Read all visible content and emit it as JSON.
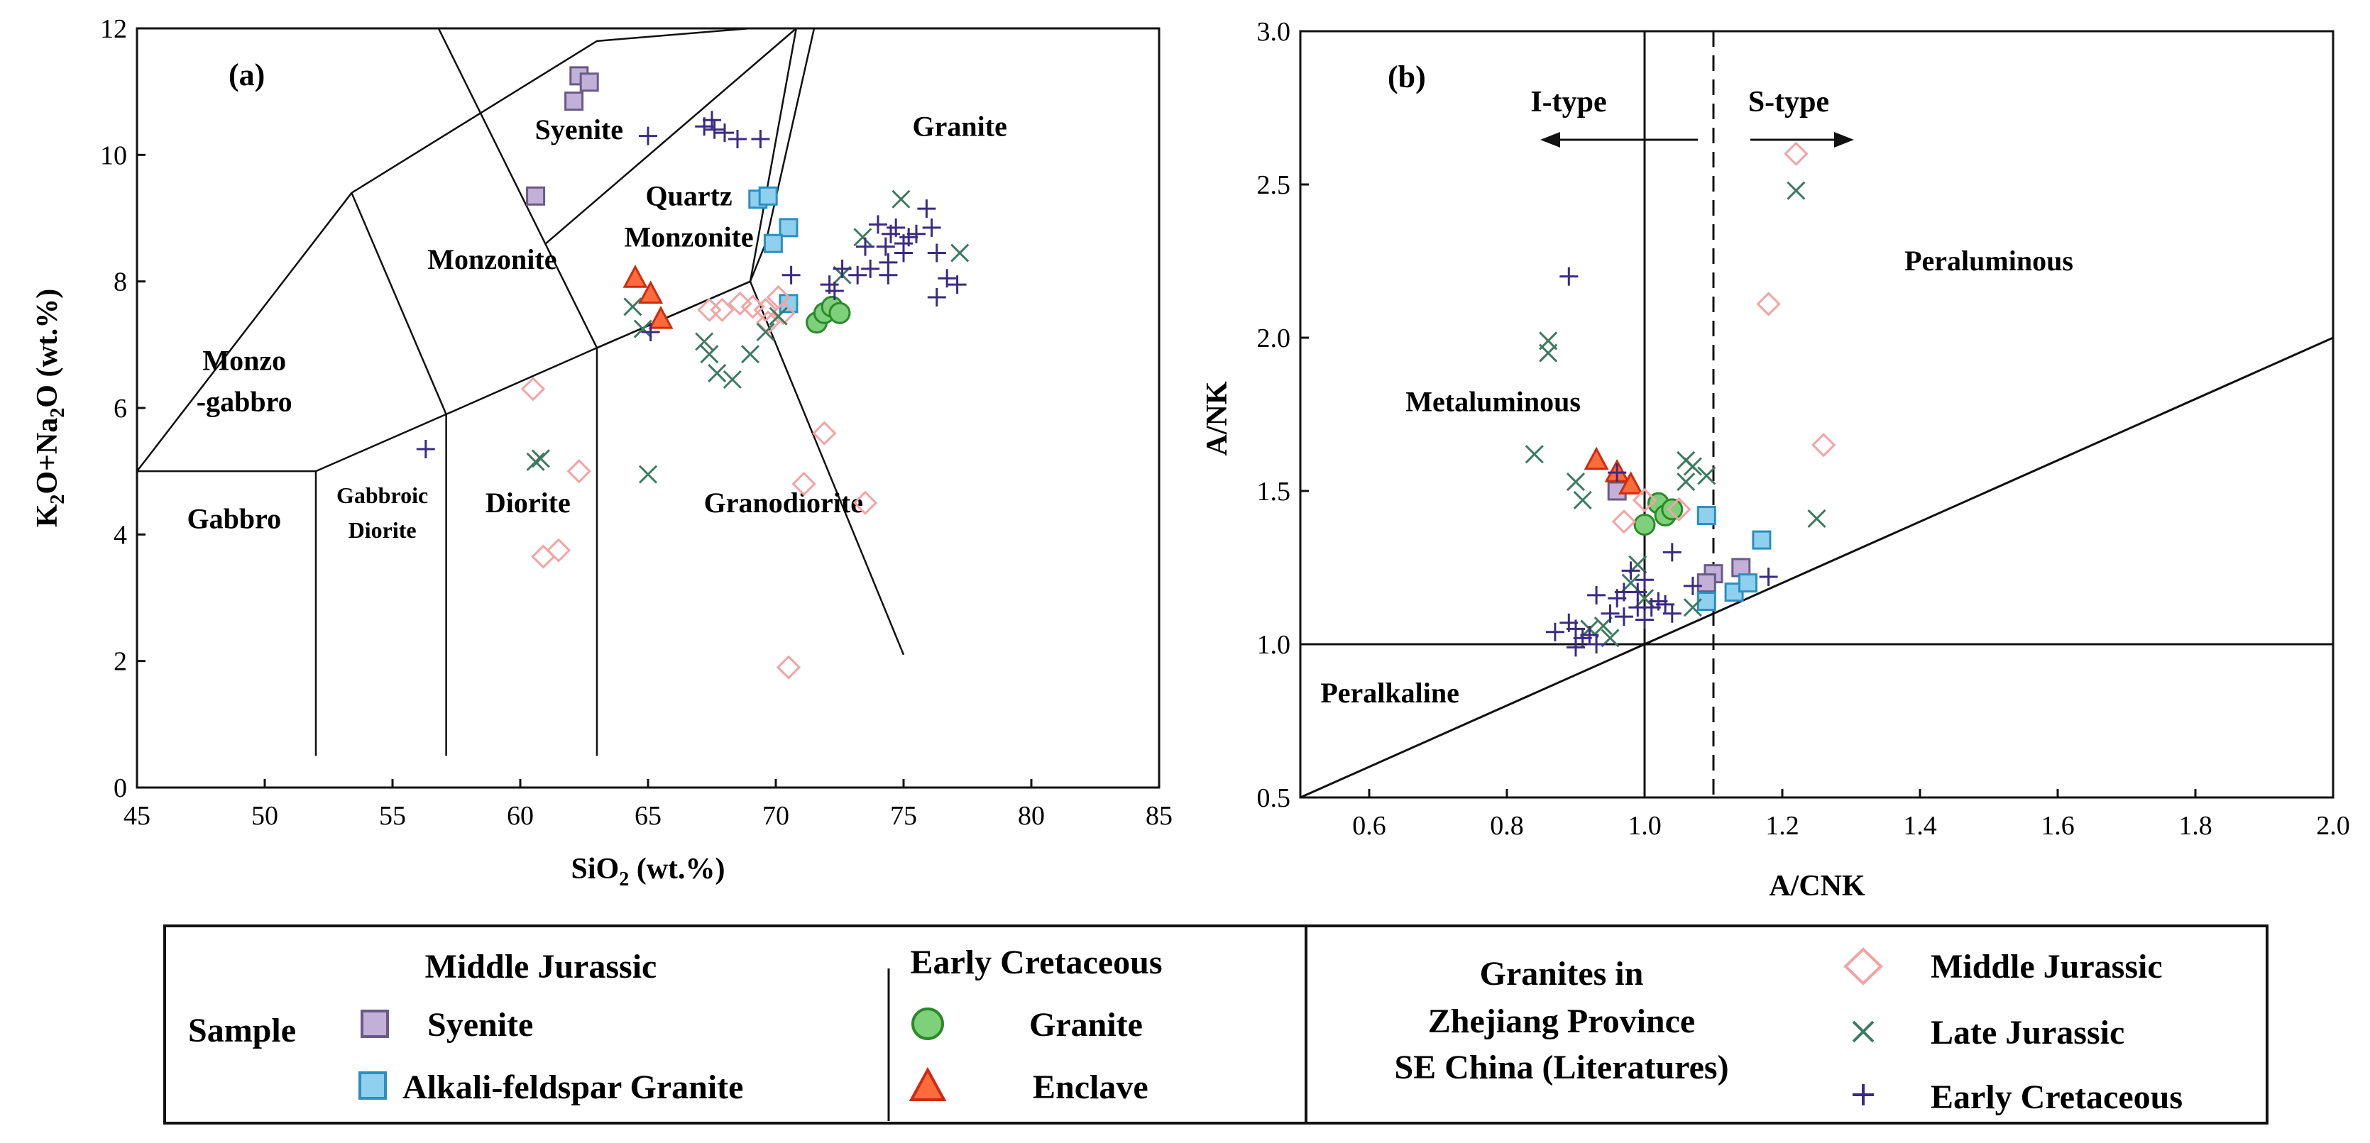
{
  "chart_data": [
    {
      "type": "scatter",
      "panel_label": "(a)",
      "xlabel_main": "SiO",
      "xlabel_sub": "2",
      "xlabel_tail": " (wt.%)",
      "ylabel_parts": [
        {
          "t": "K",
          "sub": false
        },
        {
          "t": "2",
          "sub": true
        },
        {
          "t": "O+Na",
          "sub": false
        },
        {
          "t": "2",
          "sub": true
        },
        {
          "t": "O (wt.%)",
          "sub": false
        }
      ],
      "xlim": [
        45,
        85
      ],
      "ylim": [
        0,
        12
      ],
      "xticks": [
        45,
        50,
        55,
        60,
        65,
        70,
        75,
        80,
        85
      ],
      "yticks": [
        0,
        2,
        4,
        6,
        8,
        10,
        12
      ],
      "field_boundaries": [
        [
          [
            45,
            5
          ],
          [
            52,
            5
          ],
          [
            57.1,
            5.9
          ],
          [
            63,
            6.95
          ],
          [
            69,
            8
          ]
        ],
        [
          [
            45,
            5
          ],
          [
            53.4,
            9.4
          ],
          [
            63,
            11.8
          ],
          [
            69,
            14
          ]
        ],
        [
          [
            52,
            0.5
          ],
          [
            52,
            5
          ]
        ],
        [
          [
            53.4,
            9.4
          ],
          [
            57.1,
            5.9
          ]
        ],
        [
          [
            57.1,
            0.5
          ],
          [
            57.1,
            5.9
          ]
        ],
        [
          [
            63,
            0.5
          ],
          [
            63,
            6.95
          ]
        ],
        [
          [
            56.8,
            12
          ],
          [
            63,
            6.95
          ]
        ],
        [
          [
            61,
            8.6
          ],
          [
            70.8,
            12.3
          ]
        ],
        [
          [
            69,
            8
          ],
          [
            70.8,
            12.3
          ]
        ],
        [
          [
            69,
            8
          ],
          [
            75,
            2.1
          ]
        ],
        [
          [
            71.5,
            12
          ],
          [
            69.6,
            8.6
          ],
          [
            69,
            8
          ]
        ],
        [
          [
            69,
            8
          ],
          [
            63,
            6.95
          ]
        ]
      ],
      "field_labels": [
        {
          "text": "Syenite",
          "x": 62.3,
          "y": 10.25
        },
        {
          "text": "Quartz",
          "x": 66.6,
          "y": 9.2
        },
        {
          "text": "Monzonite",
          "x": 66.6,
          "y": 8.55
        },
        {
          "text": "Monzonite",
          "x": 58.9,
          "y": 8.2
        },
        {
          "text": "Granite",
          "x": 77.2,
          "y": 10.3
        },
        {
          "text": "Monzo",
          "x": 49.2,
          "y": 6.6
        },
        {
          "text": "-gabbro",
          "x": 49.2,
          "y": 5.95
        },
        {
          "text": "Gabbro",
          "x": 48.8,
          "y": 4.1
        },
        {
          "text": "Diorite",
          "x": 60.3,
          "y": 4.35
        },
        {
          "text": "Granodiorite",
          "x": 70.3,
          "y": 4.35
        }
      ],
      "small_labels": [
        {
          "text": "Gabbroic",
          "x": 54.6,
          "y": 4.5
        },
        {
          "text": "Diorite",
          "x": 54.6,
          "y": 3.95
        }
      ],
      "series": [
        {
          "name": "Sample Middle Jurassic Syenite",
          "marker": "square",
          "fill": "#c2b0d8",
          "stroke": "#6a5a88",
          "points": [
            [
              62.3,
              11.25
            ],
            [
              62.7,
              11.15
            ],
            [
              62.1,
              10.85
            ],
            [
              60.6,
              9.35
            ]
          ]
        },
        {
          "name": "Sample Middle Jurassic Alkali-feldspar Granite",
          "marker": "square",
          "fill": "#8fd0ee",
          "stroke": "#2a8fc0",
          "points": [
            [
              69.3,
              9.3
            ],
            [
              69.7,
              9.35
            ],
            [
              70.5,
              8.85
            ],
            [
              69.9,
              8.6
            ],
            [
              70.5,
              7.65
            ]
          ]
        },
        {
          "name": "Sample Early Cretaceous Granite",
          "marker": "circle",
          "fill": "#7ed07a",
          "stroke": "#2a8a2a",
          "points": [
            [
              71.6,
              7.35
            ],
            [
              71.9,
              7.5
            ],
            [
              72.2,
              7.6
            ],
            [
              72.5,
              7.5
            ]
          ]
        },
        {
          "name": "Sample Early Cretaceous Enclave",
          "marker": "triangle",
          "fill": "#ff6b3a",
          "stroke": "#d02a10",
          "points": [
            [
              64.5,
              8.05
            ],
            [
              65.1,
              7.8
            ],
            [
              65.5,
              7.4
            ]
          ]
        },
        {
          "name": "Literature Middle Jurassic",
          "marker": "diamond",
          "fill": "none",
          "stroke": "#f3a3a3",
          "points": [
            [
              67.4,
              7.55
            ],
            [
              67.9,
              7.55
            ],
            [
              68.6,
              7.65
            ],
            [
              69.1,
              7.6
            ],
            [
              69.6,
              7.55
            ],
            [
              70.1,
              7.75
            ],
            [
              70.3,
              7.5
            ],
            [
              69.7,
              7.35
            ],
            [
              60.5,
              6.3
            ],
            [
              62.3,
              5.0
            ],
            [
              71.9,
              5.6
            ],
            [
              71.1,
              4.8
            ],
            [
              73.5,
              4.5
            ],
            [
              60.9,
              3.65
            ],
            [
              61.5,
              3.75
            ],
            [
              70.5,
              1.9
            ]
          ]
        },
        {
          "name": "Literature Late Jurassic",
          "marker": "x",
          "fill": "none",
          "stroke": "#3e7a62",
          "points": [
            [
              64.4,
              7.6
            ],
            [
              64.8,
              7.25
            ],
            [
              67.2,
              7.05
            ],
            [
              67.4,
              6.85
            ],
            [
              67.7,
              6.55
            ],
            [
              68.3,
              6.45
            ],
            [
              69,
              6.85
            ],
            [
              69.6,
              7.2
            ],
            [
              70.1,
              7.45
            ],
            [
              72.6,
              8.1
            ],
            [
              73.4,
              8.7
            ],
            [
              74.9,
              9.3
            ],
            [
              77.2,
              8.45
            ],
            [
              60.6,
              5.15
            ],
            [
              60.8,
              5.2
            ],
            [
              65,
              4.95
            ]
          ]
        },
        {
          "name": "Literature Early Cretaceous",
          "marker": "plus",
          "fill": "none",
          "stroke": "#3b2a84",
          "points": [
            [
              65,
              10.3
            ],
            [
              67.5,
              10.55
            ],
            [
              67.6,
              10.4
            ],
            [
              68,
              10.35
            ],
            [
              68.5,
              10.25
            ],
            [
              69.4,
              10.25
            ],
            [
              67.2,
              10.45
            ],
            [
              73.5,
              8.55
            ],
            [
              74,
              8.9
            ],
            [
              74.3,
              8.55
            ],
            [
              74.5,
              8.75
            ],
            [
              74.7,
              8.85
            ],
            [
              75,
              8.6
            ],
            [
              75.2,
              8.7
            ],
            [
              75.5,
              8.75
            ],
            [
              75.9,
              9.15
            ],
            [
              76.1,
              8.85
            ],
            [
              75,
              8.45
            ],
            [
              74.4,
              8.3
            ],
            [
              73.7,
              8.2
            ],
            [
              73.2,
              8.1
            ],
            [
              72.6,
              8.2
            ],
            [
              74.4,
              8.1
            ],
            [
              72.1,
              7.95
            ],
            [
              70.6,
              8.1
            ],
            [
              76.3,
              8.45
            ],
            [
              76.7,
              8.05
            ],
            [
              77.1,
              7.95
            ],
            [
              76.3,
              7.75
            ],
            [
              72.3,
              7.85
            ],
            [
              65.1,
              7.2
            ],
            [
              56.3,
              5.35
            ]
          ]
        }
      ]
    },
    {
      "type": "scatter",
      "panel_label": "(b)",
      "xlabel": "A/CNK",
      "ylabel": "A/NK",
      "xlim": [
        0.5,
        2.0
      ],
      "ylim": [
        0.5,
        3.0
      ],
      "xticks": [
        0.6,
        0.8,
        1.0,
        1.2,
        1.4,
        1.6,
        1.8,
        2.0
      ],
      "xtick_labels": [
        "0.6",
        "0.8",
        "1.0",
        "1.2",
        "1.4",
        "1.6",
        "1.8",
        "2.0"
      ],
      "yticks": [
        0.5,
        1.0,
        1.5,
        2.0,
        2.5,
        3.0
      ],
      "ytick_labels": [
        "0.5",
        "1.0",
        "1.5",
        "2.0",
        "2.5",
        "3.0"
      ],
      "reference_lines": {
        "vertical_solid": 1.0,
        "vertical_dashed": 1.1,
        "horizontal": 1.0,
        "diagonal": [
          [
            0.5,
            0.5
          ],
          [
            2.0,
            2.0
          ]
        ]
      },
      "type_labels": {
        "i_type": "I-type",
        "s_type": "S-type"
      },
      "field_labels": [
        {
          "text": "Peraluminous",
          "x": 1.5,
          "y": 2.22
        },
        {
          "text": "Metaluminous",
          "x": 0.78,
          "y": 1.76
        },
        {
          "text": "Peralkaline",
          "x": 0.63,
          "y": 0.81
        }
      ],
      "series": [
        {
          "name": "Sample Middle Jurassic Syenite",
          "marker": "square",
          "fill": "#c2b0d8",
          "stroke": "#6a5a88",
          "points": [
            [
              0.96,
              1.5
            ],
            [
              1.1,
              1.23
            ],
            [
              1.14,
              1.25
            ],
            [
              1.09,
              1.2
            ]
          ]
        },
        {
          "name": "Sample Middle Jurassic Alkali-feldspar Granite",
          "marker": "square",
          "fill": "#8fd0ee",
          "stroke": "#2a8fc0",
          "points": [
            [
              1.09,
              1.42
            ],
            [
              1.17,
              1.34
            ],
            [
              1.09,
              1.14
            ],
            [
              1.13,
              1.17
            ],
            [
              1.15,
              1.2
            ]
          ]
        },
        {
          "name": "Sample Early Cretaceous Granite",
          "marker": "circle",
          "fill": "#7ed07a",
          "stroke": "#2a8a2a",
          "points": [
            [
              1.0,
              1.39
            ],
            [
              1.02,
              1.46
            ],
            [
              1.03,
              1.42
            ],
            [
              1.04,
              1.44
            ]
          ]
        },
        {
          "name": "Sample Early Cretaceous Enclave",
          "marker": "triangle",
          "fill": "#ff6b3a",
          "stroke": "#d02a10",
          "points": [
            [
              0.93,
              1.6
            ],
            [
              0.96,
              1.56
            ],
            [
              0.98,
              1.52
            ]
          ]
        },
        {
          "name": "Literature Middle Jurassic",
          "marker": "diamond",
          "fill": "none",
          "stroke": "#f3a3a3",
          "points": [
            [
              1.22,
              2.6
            ],
            [
              1.18,
              2.11
            ],
            [
              1.26,
              1.65
            ],
            [
              0.97,
              1.4
            ],
            [
              1.0,
              1.47
            ],
            [
              1.05,
              1.44
            ]
          ]
        },
        {
          "name": "Literature Late Jurassic",
          "marker": "x",
          "fill": "none",
          "stroke": "#3e7a62",
          "points": [
            [
              1.22,
              2.48
            ],
            [
              0.86,
              1.99
            ],
            [
              0.86,
              1.95
            ],
            [
              0.84,
              1.62
            ],
            [
              0.9,
              1.53
            ],
            [
              0.91,
              1.47
            ],
            [
              1.06,
              1.6
            ],
            [
              1.07,
              1.58
            ],
            [
              1.09,
              1.55
            ],
            [
              1.06,
              1.53
            ],
            [
              1.25,
              1.41
            ],
            [
              0.99,
              1.26
            ],
            [
              0.98,
              1.2
            ],
            [
              1.0,
              1.15
            ],
            [
              0.94,
              1.06
            ],
            [
              0.92,
              1.05
            ],
            [
              0.95,
              1.02
            ],
            [
              1.07,
              1.12
            ]
          ]
        },
        {
          "name": "Literature Early Cretaceous",
          "marker": "plus",
          "fill": "none",
          "stroke": "#3b2a84",
          "points": [
            [
              0.89,
              2.2
            ],
            [
              0.96,
              1.56
            ],
            [
              1.04,
              1.3
            ],
            [
              1.0,
              1.21
            ],
            [
              0.98,
              1.24
            ],
            [
              0.99,
              1.17
            ],
            [
              0.97,
              1.17
            ],
            [
              0.96,
              1.15
            ],
            [
              0.93,
              1.16
            ],
            [
              1.01,
              1.12
            ],
            [
              1.03,
              1.13
            ],
            [
              1.04,
              1.1
            ],
            [
              0.99,
              1.12
            ],
            [
              1.0,
              1.08
            ],
            [
              0.97,
              1.09
            ],
            [
              0.95,
              1.1
            ],
            [
              0.87,
              1.04
            ],
            [
              0.9,
              1.05
            ],
            [
              0.91,
              1.02
            ],
            [
              0.92,
              1.03
            ],
            [
              0.93,
              1.0
            ],
            [
              0.9,
              0.99
            ],
            [
              0.89,
              1.07
            ],
            [
              1.18,
              1.22
            ],
            [
              1.07,
              1.19
            ],
            [
              1.02,
              1.14
            ]
          ]
        }
      ]
    }
  ],
  "legend": {
    "sample_label": "Sample",
    "middle_jurassic_header": "Middle Jurassic",
    "early_cretaceous_header": "Early Cretaceous",
    "syenite": "Syenite",
    "alkali_feldspar_granite": "Alkali-feldspar Granite",
    "granite": "Granite",
    "enclave": "Enclave",
    "literature_title_lines": [
      "Granites in",
      "Zhejiang Province",
      "SE China (Literatures)"
    ],
    "lit_middle_jurassic": "Middle Jurassic",
    "lit_late_jurassic": "Late Jurassic",
    "lit_early_cretaceous": "Early Cretaceous"
  }
}
